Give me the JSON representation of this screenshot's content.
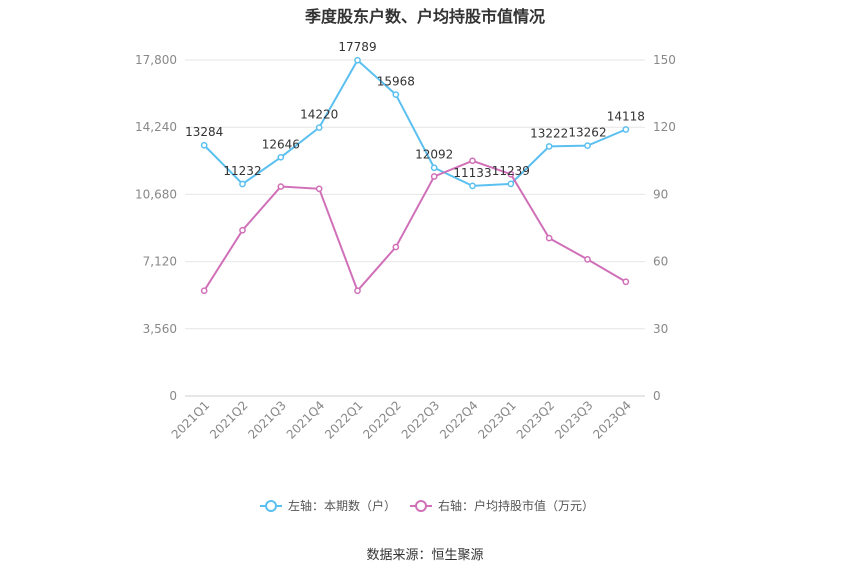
{
  "title": "季度股东户数、户均持股市值情况",
  "source": "数据来源：恒生聚源",
  "chart_data": {
    "type": "line",
    "title": "季度股东户数、户均持股市值情况",
    "categories": [
      "2021Q1",
      "2021Q2",
      "2021Q3",
      "2021Q4",
      "2022Q1",
      "2022Q2",
      "2022Q3",
      "2022Q4",
      "2023Q1",
      "2023Q2",
      "2023Q3",
      "2023Q4"
    ],
    "left_axis": {
      "ylim": [
        0,
        17800
      ],
      "ticks": [
        0,
        3560,
        7120,
        10680,
        14240,
        17800
      ],
      "tick_labels": [
        "0",
        "3,560",
        "7,120",
        "10,680",
        "14,240",
        "17,800"
      ]
    },
    "right_axis": {
      "ylim": [
        0,
        150
      ],
      "ticks": [
        0,
        30,
        60,
        90,
        120,
        150
      ],
      "tick_labels": [
        "0",
        "30",
        "60",
        "90",
        "120",
        "150"
      ]
    },
    "series": [
      {
        "name": "左轴：本期数（户）",
        "axis": "left",
        "color": "#5bc0f0",
        "values": [
          13284,
          11232,
          12646,
          14220,
          17789,
          15968,
          12092,
          11133,
          11239,
          13222,
          13262,
          14118
        ],
        "labels": [
          "13284",
          "11232",
          "12646",
          "14220",
          "17789",
          "15968",
          "12092",
          "11133",
          "11239",
          "13222",
          "13262",
          "14118"
        ]
      },
      {
        "name": "右轴：户均持股市值（万元）",
        "axis": "right",
        "color": "#d070b8",
        "values": [
          47,
          74,
          93.5,
          92.5,
          47,
          66.5,
          98,
          105,
          99,
          70.5,
          61,
          51
        ]
      }
    ],
    "grid": true,
    "legend_position": "bottom"
  }
}
